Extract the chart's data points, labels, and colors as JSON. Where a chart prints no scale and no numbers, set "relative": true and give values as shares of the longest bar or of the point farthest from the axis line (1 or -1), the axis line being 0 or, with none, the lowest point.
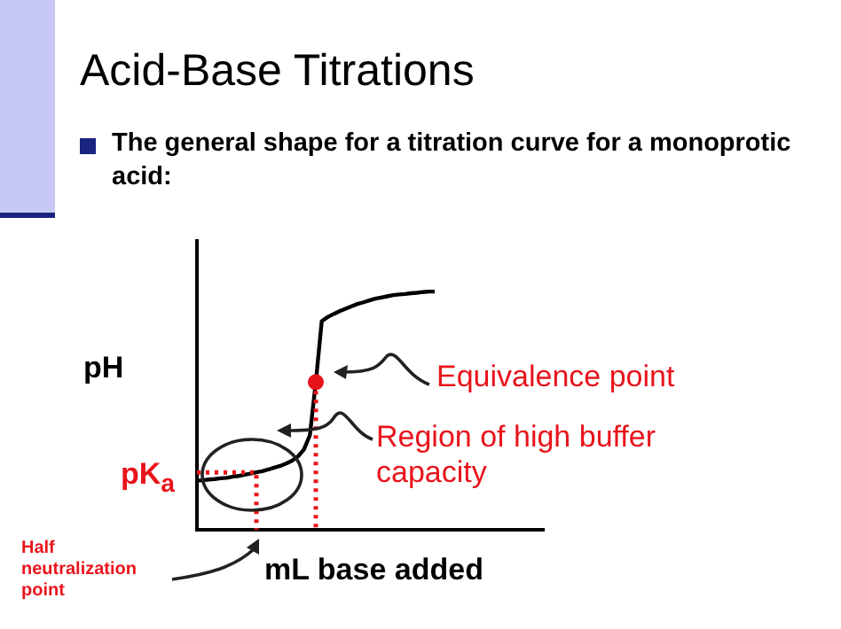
{
  "chart_data": {
    "type": "line",
    "title": "Acid-Base Titrations",
    "subtitle": "The general shape for a titration curve for a monoprotic acid:",
    "xlabel": "mL base added",
    "ylabel": "pH",
    "relative": true,
    "legend": false,
    "categories": [
      null,
      null,
      null,
      null,
      null,
      null,
      null,
      null,
      null,
      null,
      null,
      null,
      null,
      null,
      null,
      null,
      null,
      null,
      null,
      null,
      null,
      null,
      null,
      null,
      null,
      null,
      null,
      null,
      null,
      null,
      null,
      null,
      null,
      null,
      null,
      null,
      null,
      null,
      null,
      null,
      null
    ],
    "series": [
      {
        "color": "#000000",
        "marker": "none",
        "line_style": "solid",
        "values": [
          0.206,
          0.208,
          0.211,
          0.213,
          0.216,
          0.218,
          0.223,
          0.226,
          0.231,
          0.236,
          0.241,
          0.246,
          0.253,
          0.261,
          0.268,
          0.278,
          0.29,
          0.308,
          0.337,
          0.397,
          0.62,
          0.876,
          0.893,
          0.906,
          0.918,
          0.928,
          0.938,
          0.948,
          0.955,
          0.963,
          0.97,
          0.975,
          0.98,
          0.985,
          0.988,
          0.99,
          0.993,
          0.995,
          0.998,
          1,
          1
        ]
      }
    ],
    "ref_lines": [
      {
        "axis": "y",
        "value": 0.241,
        "label": "pK$_{a}$",
        "color": "#e8141b",
        "line_style": "dotted"
      }
    ],
    "annotations": [
      "Equivalence point",
      "Region of high buffer capacity",
      "Half neutralization point"
    ]
  }
}
